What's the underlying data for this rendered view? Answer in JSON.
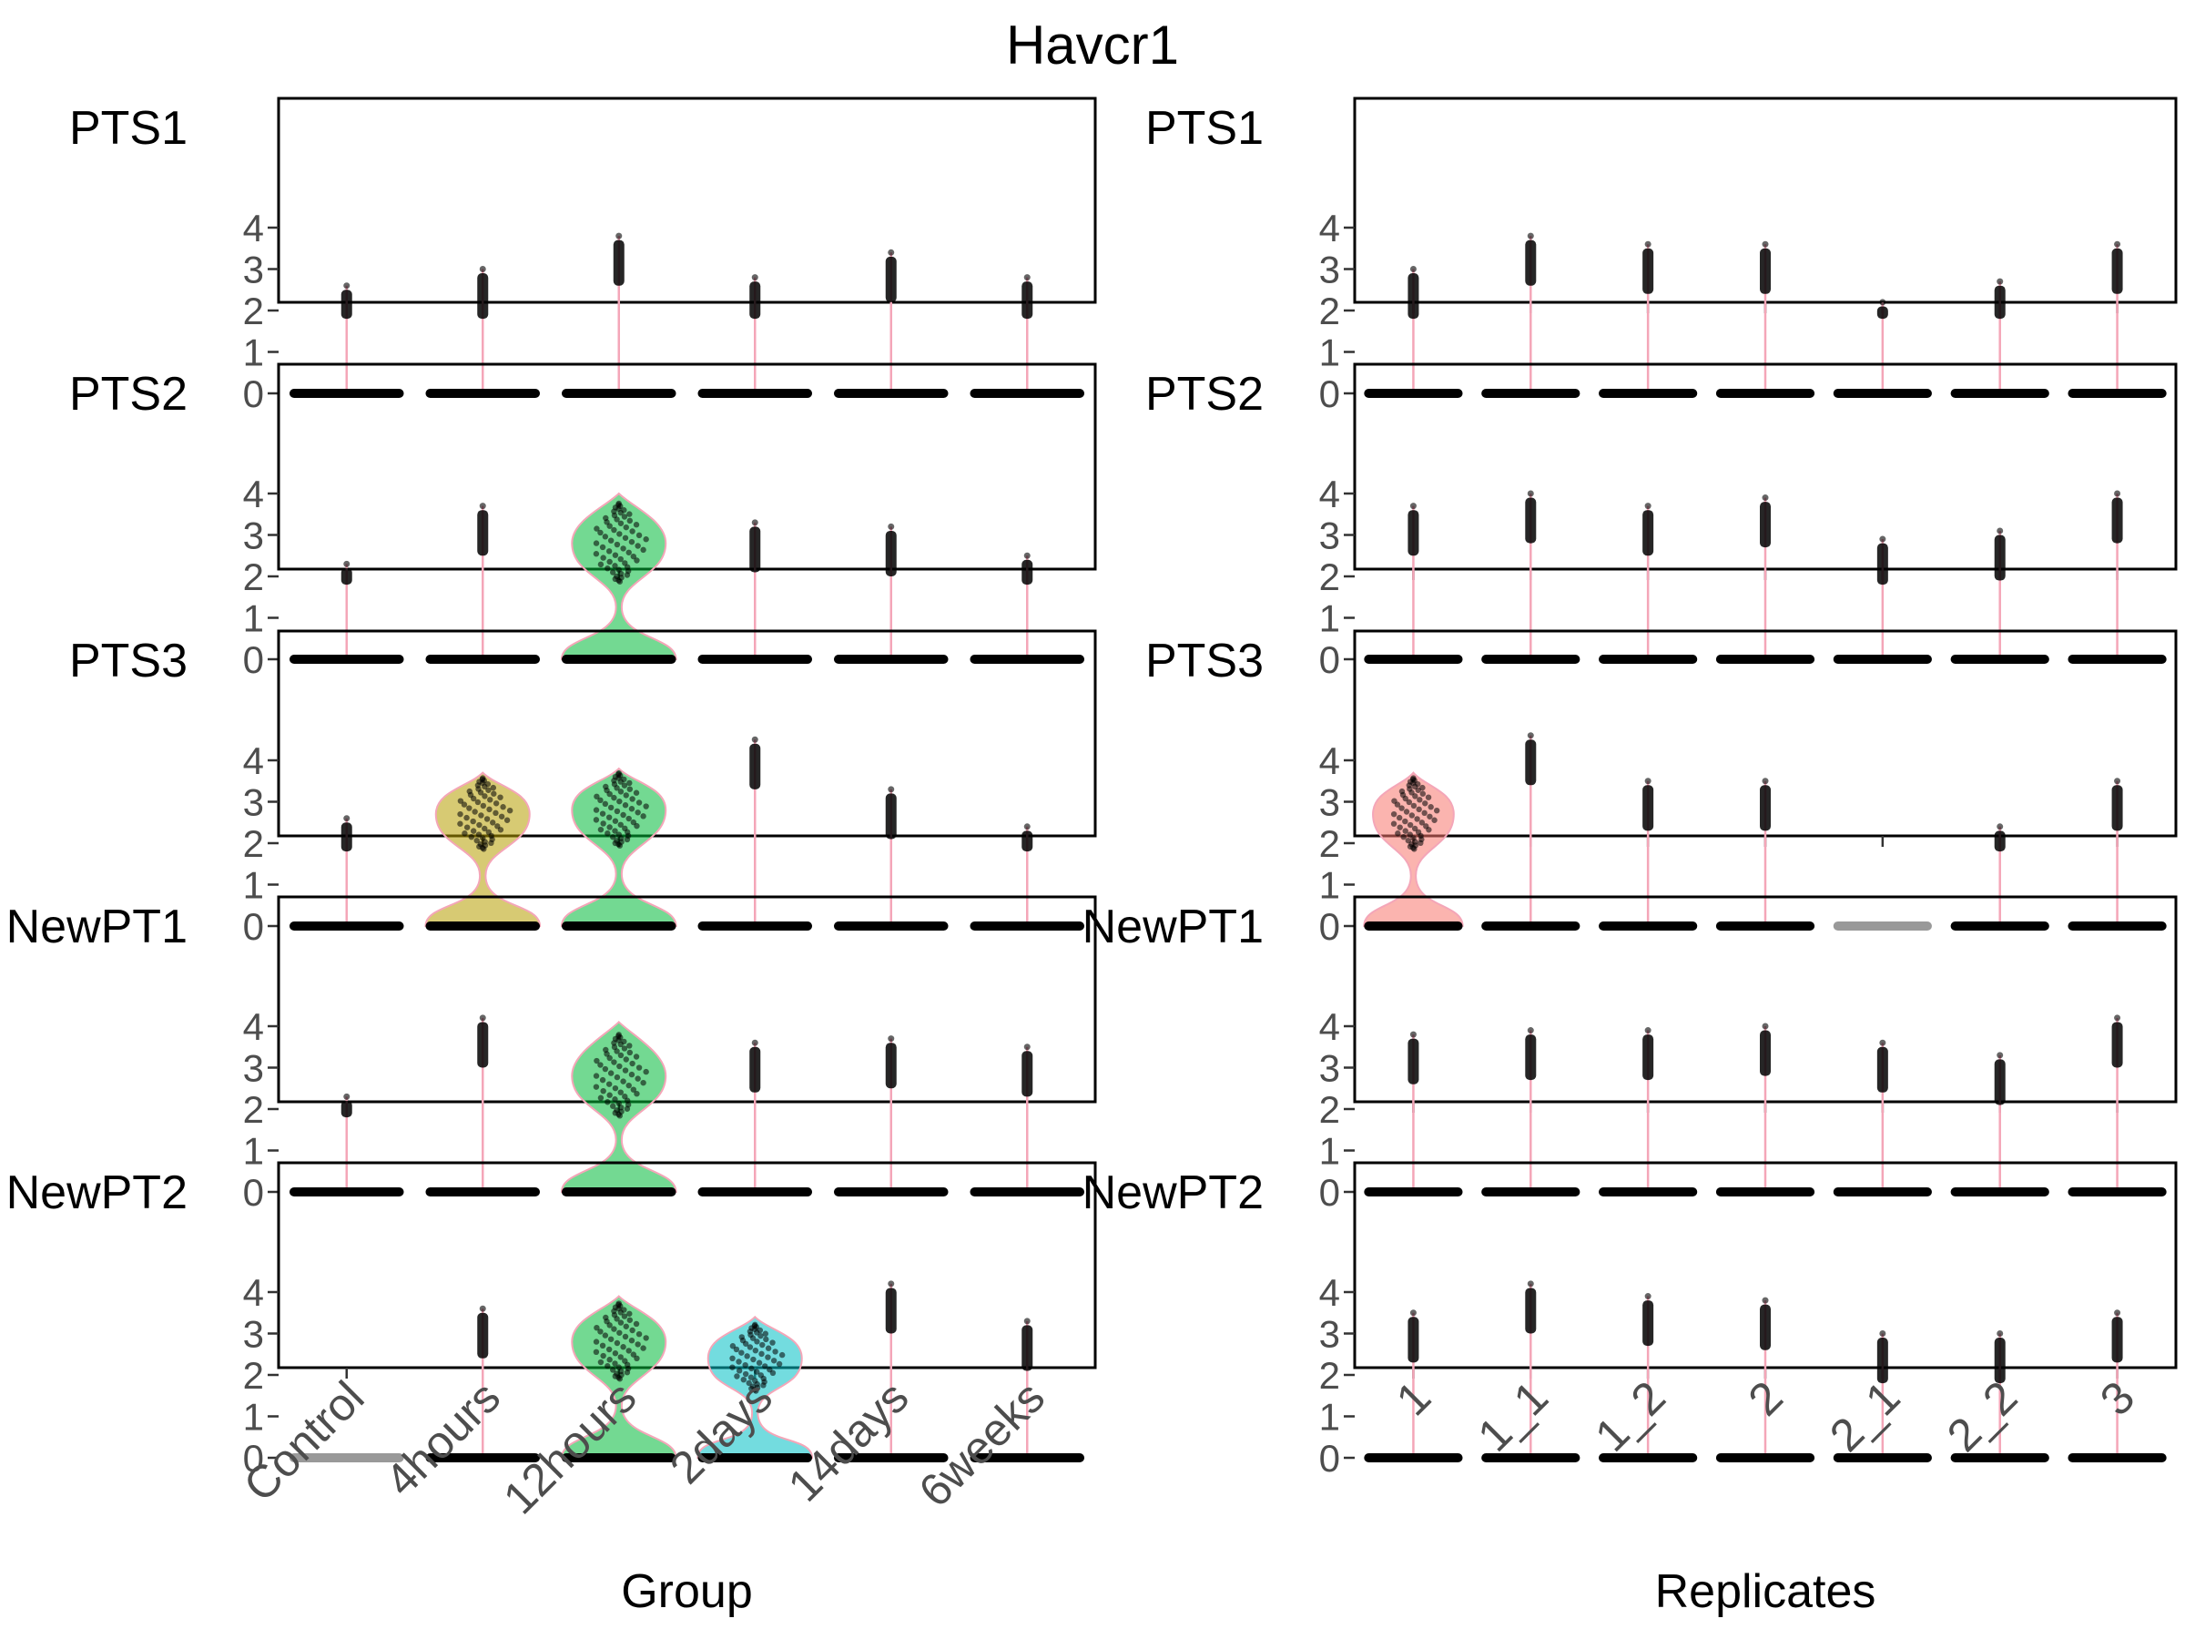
{
  "chart_data": {
    "type": "violin",
    "title": "Havcr1",
    "rows": [
      "PTS1",
      "PTS2",
      "PTS3",
      "NewPT1",
      "NewPT2"
    ],
    "yticks": [
      "0",
      "1",
      "2",
      "3",
      "4"
    ],
    "ylim": [
      0,
      4.6
    ],
    "panels": [
      {
        "xlabel": "Group",
        "categories": [
          "Control",
          "4hours",
          "12hours",
          "2days",
          "14days",
          "6weeks"
        ],
        "fill_colors": [
          "#F8766D",
          "#B79F00",
          "#00BA38",
          "#00BFC4",
          "#619CFF",
          "#F564E3"
        ],
        "max_values": [
          [
            2.6,
            3.0,
            3.8,
            2.8,
            3.4,
            2.8
          ],
          [
            2.3,
            3.7,
            4.0,
            3.3,
            3.2,
            2.5
          ],
          [
            2.6,
            3.7,
            3.8,
            4.5,
            3.3,
            2.4
          ],
          [
            2.3,
            4.2,
            4.1,
            3.6,
            3.7,
            3.5
          ],
          [
            0.0,
            3.6,
            3.9,
            3.4,
            4.2,
            3.3
          ]
        ],
        "upper_mode": [
          [
            0,
            0,
            0,
            0,
            0,
            0
          ],
          [
            0,
            0,
            2.8,
            0,
            0,
            0
          ],
          [
            0,
            2.7,
            2.8,
            0,
            0,
            0
          ],
          [
            0,
            0,
            2.8,
            0,
            0,
            0
          ],
          [
            0,
            0,
            2.8,
            2.4,
            0,
            0
          ]
        ]
      },
      {
        "xlabel": "Replicates",
        "categories": [
          "1",
          "1_1",
          "1_2",
          "2",
          "2_1",
          "2_2",
          "3"
        ],
        "fill_colors": [
          "#F8766D",
          "#C49A00",
          "#53B400",
          "#00C094",
          "#00B6EB",
          "#A58AFF",
          "#FB61D7"
        ],
        "max_values": [
          [
            3.0,
            3.8,
            3.6,
            3.6,
            2.2,
            2.7,
            3.6
          ],
          [
            3.7,
            4.0,
            3.7,
            3.9,
            2.9,
            3.1,
            4.0
          ],
          [
            3.7,
            4.6,
            3.5,
            3.5,
            0.0,
            2.4,
            3.5
          ],
          [
            3.8,
            3.9,
            3.9,
            4.0,
            3.6,
            3.3,
            4.2
          ],
          [
            3.5,
            4.2,
            3.9,
            3.8,
            3.0,
            3.0,
            3.5
          ]
        ],
        "upper_mode": [
          [
            0,
            0,
            0,
            0,
            0,
            0,
            0
          ],
          [
            0,
            0,
            0,
            0,
            0,
            0,
            0
          ],
          [
            2.7,
            0,
            0,
            0,
            0,
            0,
            0
          ],
          [
            0,
            0,
            0,
            0,
            0,
            0,
            0
          ],
          [
            0,
            0,
            0,
            0,
            0,
            0,
            0
          ]
        ]
      }
    ]
  }
}
